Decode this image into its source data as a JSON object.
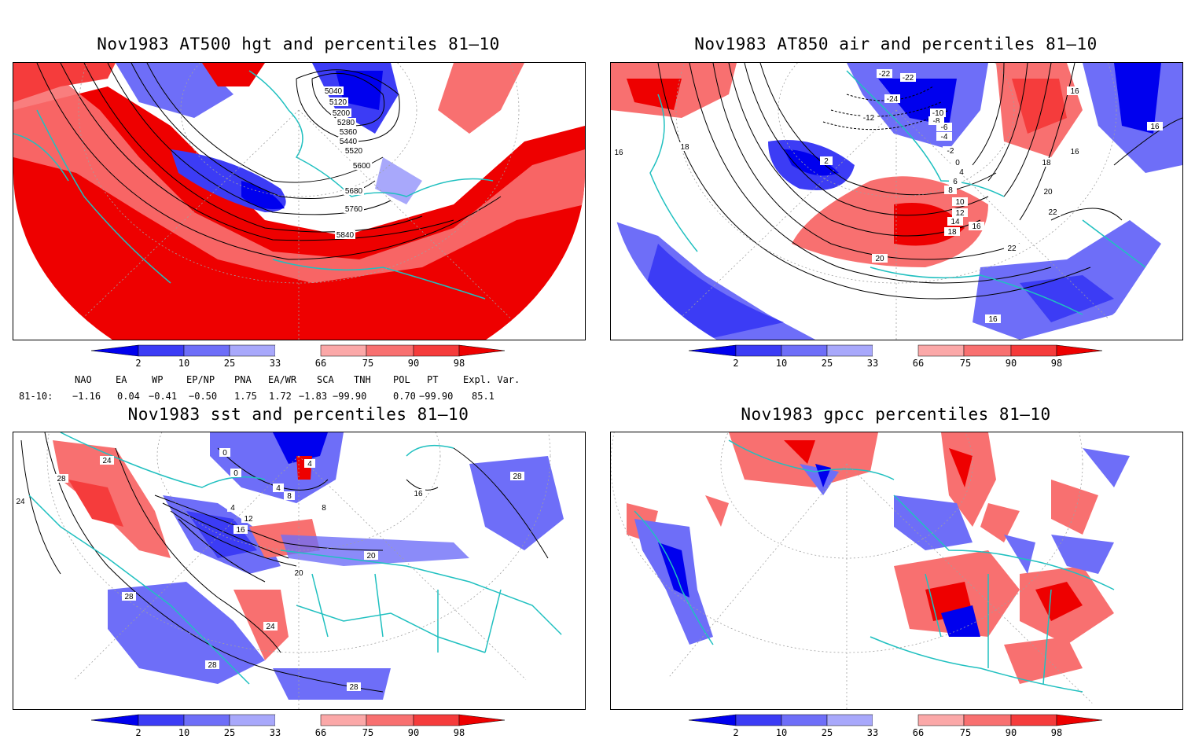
{
  "panels": [
    {
      "id": "p1",
      "title": "Nov1983 AT500 hgt and percentiles 81–10",
      "contour_labels": [
        "5040",
        "5120",
        "5200",
        "5280",
        "5360",
        "5440",
        "5520",
        "5600",
        "5680",
        "5760",
        "5840"
      ]
    },
    {
      "id": "p2",
      "title": "Nov1983 AT850 air and percentiles 81–10",
      "contour_labels": [
        "-22",
        "-22",
        "-24",
        "-12",
        "-10",
        "-8",
        "-6",
        "-4",
        "-2",
        "0",
        "2",
        "4",
        "6",
        "8",
        "10",
        "12",
        "14",
        "16",
        "16",
        "16",
        "16",
        "16",
        "18",
        "18",
        "18",
        "20",
        "20",
        "22",
        "22",
        "16"
      ]
    },
    {
      "id": "p3",
      "title": "Nov1983 sst and percentiles 81–10",
      "contour_labels": [
        "24",
        "28",
        "24",
        "0",
        "0",
        "4",
        "4",
        "8",
        "8",
        "4",
        "12",
        "16",
        "20",
        "20",
        "28",
        "24",
        "28",
        "28",
        "28",
        "16"
      ]
    },
    {
      "id": "p4",
      "title": "Nov1983 gpcc percentiles 81–10",
      "contour_labels": []
    }
  ],
  "colorbar": {
    "labels": [
      "2",
      "10",
      "25",
      "33",
      "66",
      "75",
      "90",
      "98"
    ],
    "colors": [
      "#0000ee",
      "#3c3cf5",
      "#6e6ef8",
      "#a8a8fb",
      "#ffffff",
      "#fba8a8",
      "#f87070",
      "#f53c3c",
      "#ee0000"
    ]
  },
  "indices": {
    "headers": [
      "NAO",
      "EA",
      "WP",
      "EP/NP",
      "PNA",
      "EA/WR",
      "SCA",
      "TNH",
      "POL",
      "PT",
      "Expl. Var."
    ],
    "row_label": "81-10:",
    "values": [
      "−1.16",
      "0.04",
      "−0.41",
      "−0.50",
      "1.75",
      "1.72",
      "−1.83",
      "−99.90",
      "0.70",
      "−99.90",
      "85.1"
    ]
  },
  "colors": {
    "coast": "#20c0c0",
    "contour": "#000000",
    "grid": "#a0a0a0"
  }
}
